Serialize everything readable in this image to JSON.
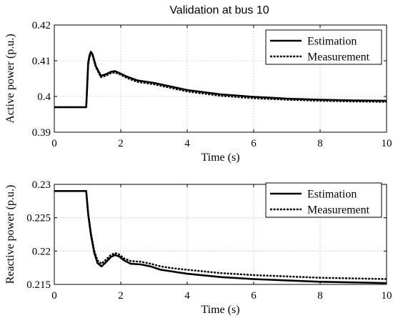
{
  "chart_data": [
    {
      "type": "line",
      "title": "Validation at bus 10",
      "xlabel": "Time (s)",
      "ylabel": "Active power (p.u.)",
      "xlim": [
        0,
        10
      ],
      "ylim": [
        0.39,
        0.42
      ],
      "xticks": [
        "0",
        "2",
        "4",
        "6",
        "8",
        "10"
      ],
      "yticks": [
        "0.39",
        "0.4",
        "0.41",
        "0.42"
      ],
      "grid": true,
      "legend_position": "top-right",
      "series": [
        {
          "name": "Estimation",
          "style": "solid",
          "x": [
            0,
            0.96,
            0.98,
            1.02,
            1.06,
            1.1,
            1.15,
            1.25,
            1.4,
            1.55,
            1.7,
            1.82,
            1.95,
            2.2,
            2.5,
            3,
            3.5,
            4,
            5,
            6,
            7,
            8,
            9,
            10
          ],
          "y": [
            0.397,
            0.397,
            0.401,
            0.4095,
            0.4115,
            0.4125,
            0.4118,
            0.4085,
            0.4058,
            0.4062,
            0.4069,
            0.4071,
            0.4066,
            0.4055,
            0.4045,
            0.4038,
            0.4028,
            0.4018,
            0.4006,
            0.3999,
            0.3994,
            0.3991,
            0.3989,
            0.3988
          ]
        },
        {
          "name": "Measurement",
          "style": "dashed",
          "x": [
            0,
            0.96,
            0.98,
            1.02,
            1.06,
            1.1,
            1.15,
            1.25,
            1.4,
            1.55,
            1.7,
            1.82,
            1.95,
            2.2,
            2.5,
            3,
            3.5,
            4,
            5,
            6,
            7,
            8,
            9,
            10
          ],
          "y": [
            0.397,
            0.397,
            0.4005,
            0.4088,
            0.411,
            0.4121,
            0.4115,
            0.4082,
            0.4054,
            0.4058,
            0.4065,
            0.4067,
            0.4063,
            0.4051,
            0.4041,
            0.4034,
            0.4024,
            0.4014,
            0.4002,
            0.3995,
            0.3991,
            0.3988,
            0.3986,
            0.3985
          ]
        }
      ]
    },
    {
      "type": "line",
      "xlabel": "Time (s)",
      "ylabel": "Reactive power (p.u.)",
      "xlim": [
        0,
        10
      ],
      "ylim": [
        0.215,
        0.23
      ],
      "xticks": [
        "0",
        "2",
        "4",
        "6",
        "8",
        "10"
      ],
      "yticks": [
        "0.215",
        "0.22",
        "0.225",
        "0.23"
      ],
      "grid": true,
      "legend_position": "top-right",
      "series": [
        {
          "name": "Estimation",
          "style": "solid",
          "x": [
            0,
            0.96,
            1.02,
            1.1,
            1.2,
            1.3,
            1.42,
            1.55,
            1.7,
            1.82,
            1.95,
            2.1,
            2.3,
            2.6,
            2.9,
            3.2,
            3.6,
            4,
            5,
            6,
            7,
            8,
            9,
            10
          ],
          "y": [
            0.229,
            0.229,
            0.2255,
            0.2225,
            0.2198,
            0.2182,
            0.2177,
            0.2183,
            0.2191,
            0.2194,
            0.2192,
            0.2186,
            0.2181,
            0.218,
            0.2177,
            0.2172,
            0.2169,
            0.2166,
            0.2161,
            0.2158,
            0.2156,
            0.2154,
            0.2153,
            0.2152
          ]
        },
        {
          "name": "Measurement",
          "style": "dashed",
          "x": [
            0,
            0.96,
            1.02,
            1.1,
            1.2,
            1.3,
            1.42,
            1.55,
            1.7,
            1.82,
            1.95,
            2.1,
            2.3,
            2.6,
            2.9,
            3.2,
            3.6,
            4,
            5,
            6,
            7,
            8,
            9,
            10
          ],
          "y": [
            0.229,
            0.229,
            0.2257,
            0.2228,
            0.2201,
            0.2186,
            0.2181,
            0.2187,
            0.2194,
            0.2197,
            0.2195,
            0.2189,
            0.2185,
            0.2184,
            0.2181,
            0.2177,
            0.2174,
            0.2172,
            0.2167,
            0.2164,
            0.2162,
            0.216,
            0.2159,
            0.2158
          ]
        }
      ]
    }
  ]
}
